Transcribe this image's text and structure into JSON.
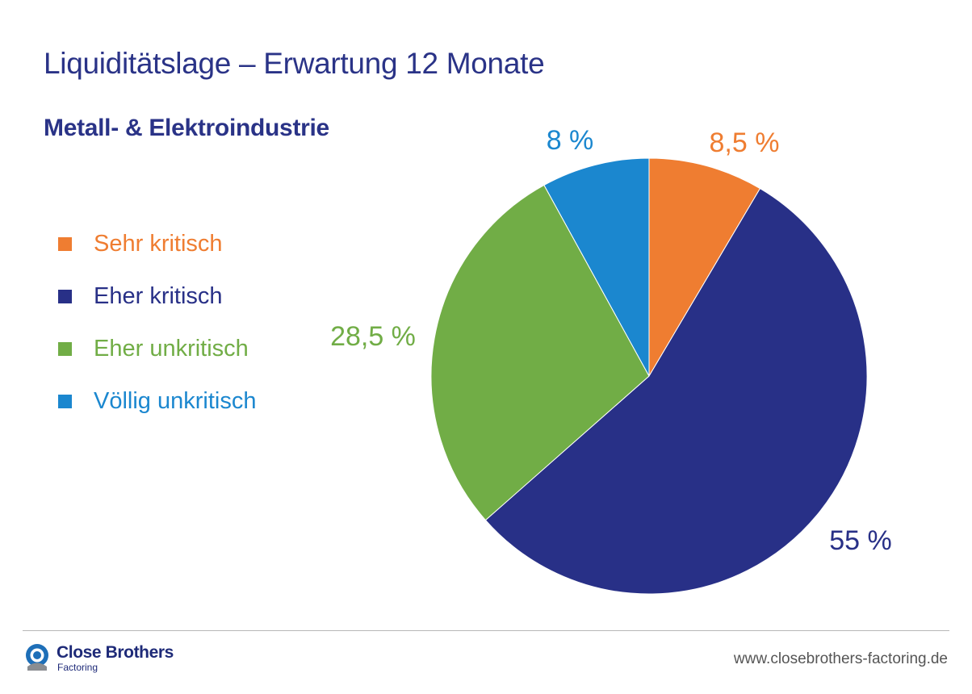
{
  "header": {
    "title": "Liquiditätslage – Erwartung 12 Monate",
    "subtitle": "Metall- & Elektroindustrie"
  },
  "chart_data": {
    "type": "pie",
    "title": "Liquiditätslage – Erwartung 12 Monate",
    "subtitle": "Metall- & Elektroindustrie",
    "legend_position": "left",
    "slices": [
      {
        "label": "Sehr kritisch",
        "value": 8.5,
        "display": "8,5 %",
        "color": "#ef7d31"
      },
      {
        "label": "Eher kritisch",
        "value": 55,
        "display": "55 %",
        "color": "#283087"
      },
      {
        "label": "Eher unkritisch",
        "value": 28.5,
        "display": "28,5 %",
        "color": "#71ad46"
      },
      {
        "label": "Völlig unkritisch",
        "value": 8,
        "display": "8 %",
        "color": "#1b87cf"
      }
    ]
  },
  "footer": {
    "brand_name": "Close Brothers",
    "brand_sub": "Factoring",
    "website": "www.closebrothers-factoring.de",
    "logo_icon": "close-brothers-logo-icon"
  }
}
